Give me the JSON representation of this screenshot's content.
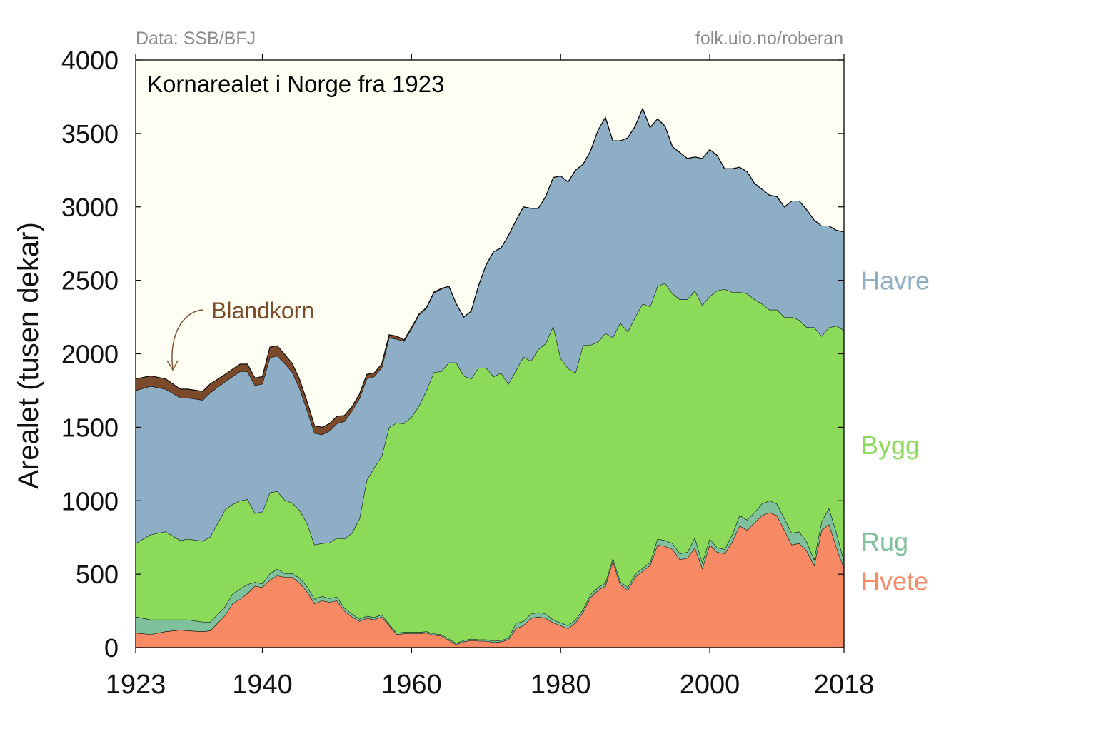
{
  "source_left": "Data: SSB/BFJ",
  "source_right": "folk.uio.no/roberan",
  "chart_data": {
    "type": "area",
    "stacked": true,
    "title": "Kornarealet i Norge fra 1923",
    "ylabel": "Arealet (tusen dekar)",
    "xlabel": "",
    "xlim": [
      1923,
      2018
    ],
    "ylim": [
      0,
      4000
    ],
    "xticks": [
      1923,
      1940,
      1960,
      1980,
      2000,
      2018
    ],
    "yticks": [
      0,
      500,
      1000,
      1500,
      2000,
      2500,
      3000,
      3500,
      4000
    ],
    "grid": false,
    "background": "#fffef3",
    "annotation": {
      "text": "Blandkorn",
      "target_x": 1928,
      "target_y": 1860,
      "color": "#7a4a2a"
    },
    "x": [
      1923,
      1925,
      1927,
      1929,
      1930,
      1932,
      1933,
      1935,
      1936,
      1937,
      1938,
      1939,
      1940,
      1941,
      1942,
      1943,
      1944,
      1945,
      1946,
      1947,
      1948,
      1949,
      1950,
      1951,
      1952,
      1953,
      1954,
      1955,
      1956,
      1957,
      1958,
      1959,
      1960,
      1961,
      1962,
      1963,
      1964,
      1965,
      1966,
      1967,
      1968,
      1969,
      1970,
      1971,
      1972,
      1973,
      1974,
      1975,
      1976,
      1977,
      1978,
      1979,
      1980,
      1981,
      1982,
      1983,
      1984,
      1985,
      1986,
      1987,
      1988,
      1989,
      1990,
      1991,
      1992,
      1993,
      1994,
      1995,
      1996,
      1997,
      1998,
      1999,
      2000,
      2001,
      2002,
      2003,
      2004,
      2005,
      2006,
      2007,
      2008,
      2009,
      2010,
      2011,
      2012,
      2013,
      2014,
      2015,
      2016,
      2017,
      2018
    ],
    "series": [
      {
        "name": "Hvete",
        "color": "#f78964",
        "values": [
          100,
          90,
          110,
          120,
          115,
          110,
          115,
          220,
          300,
          330,
          370,
          420,
          410,
          460,
          490,
          480,
          480,
          440,
          380,
          300,
          320,
          310,
          320,
          250,
          210,
          180,
          200,
          190,
          210,
          150,
          90,
          95,
          95,
          95,
          100,
          85,
          80,
          50,
          20,
          40,
          50,
          45,
          45,
          35,
          40,
          55,
          130,
          150,
          200,
          210,
          200,
          170,
          150,
          130,
          170,
          240,
          340,
          390,
          420,
          590,
          430,
          390,
          480,
          520,
          560,
          700,
          690,
          670,
          600,
          610,
          680,
          540,
          700,
          650,
          640,
          720,
          830,
          800,
          850,
          900,
          920,
          900,
          800,
          700,
          710,
          660,
          560,
          800,
          840,
          680,
          540
        ]
      },
      {
        "name": "Rug",
        "color": "#7fc19c",
        "values": [
          110,
          100,
          80,
          70,
          75,
          65,
          60,
          60,
          65,
          70,
          60,
          25,
          25,
          45,
          45,
          25,
          25,
          35,
          35,
          30,
          30,
          25,
          25,
          20,
          20,
          15,
          15,
          15,
          15,
          10,
          10,
          10,
          10,
          10,
          10,
          10,
          10,
          10,
          10,
          10,
          10,
          10,
          10,
          10,
          10,
          10,
          35,
          30,
          30,
          30,
          30,
          20,
          20,
          20,
          20,
          20,
          20,
          20,
          20,
          20,
          20,
          20,
          20,
          20,
          20,
          40,
          40,
          40,
          40,
          40,
          70,
          40,
          40,
          30,
          30,
          50,
          70,
          70,
          70,
          80,
          80,
          80,
          80,
          80,
          80,
          60,
          40,
          60,
          110,
          100,
          50
        ]
      },
      {
        "name": "Bygg",
        "color": "#8bda59",
        "values": [
          500,
          580,
          600,
          540,
          550,
          550,
          580,
          660,
          610,
          600,
          580,
          470,
          490,
          550,
          530,
          500,
          480,
          460,
          430,
          370,
          360,
          380,
          400,
          470,
          550,
          680,
          925,
          1020,
          1080,
          1340,
          1430,
          1420,
          1465,
          1540,
          1640,
          1780,
          1790,
          1880,
          1910,
          1800,
          1770,
          1850,
          1850,
          1800,
          1820,
          1730,
          1720,
          1800,
          1720,
          1790,
          1840,
          2000,
          1800,
          1750,
          1680,
          1800,
          1700,
          1670,
          1700,
          1500,
          1760,
          1740,
          1750,
          1800,
          1740,
          1720,
          1750,
          1700,
          1730,
          1720,
          1680,
          1750,
          1650,
          1750,
          1770,
          1650,
          1520,
          1540,
          1450,
          1360,
          1300,
          1320,
          1370,
          1470,
          1440,
          1460,
          1580,
          1260,
          1230,
          1410,
          1570
        ]
      },
      {
        "name": "Havre",
        "color": "#8daec4",
        "values": [
          1040,
          1010,
          970,
          970,
          960,
          960,
          980,
          870,
          870,
          880,
          870,
          870,
          870,
          920,
          920,
          930,
          890,
          830,
          770,
          760,
          740,
          760,
          780,
          800,
          830,
          820,
          690,
          620,
          600,
          610,
          570,
          560,
          600,
          620,
          560,
          540,
          560,
          520,
          400,
          400,
          460,
          560,
          700,
          850,
          850,
          1010,
          1020,
          1020,
          1040,
          960,
          1000,
          1010,
          1240,
          1270,
          1380,
          1230,
          1320,
          1440,
          1470,
          1340,
          1240,
          1320,
          1300,
          1330,
          1220,
          1140,
          1070,
          1000,
          1000,
          960,
          910,
          1000,
          1000,
          920,
          820,
          840,
          850,
          830,
          790,
          780,
          780,
          770,
          750,
          790,
          810,
          800,
          730,
          750,
          690,
          650,
          670
        ]
      },
      {
        "name": "Blandkorn",
        "color": "#7a4a2a",
        "values": [
          80,
          70,
          70,
          60,
          60,
          60,
          60,
          50,
          50,
          50,
          50,
          50,
          50,
          70,
          70,
          60,
          60,
          60,
          60,
          50,
          50,
          50,
          50,
          40,
          30,
          30,
          30,
          25,
          25,
          20,
          20,
          10,
          10,
          5,
          5,
          5,
          5,
          0,
          0,
          0,
          0,
          0,
          0,
          0,
          0,
          0,
          0,
          0,
          0,
          0,
          0,
          0,
          0,
          0,
          0,
          0,
          0,
          0,
          0,
          0,
          0,
          0,
          0,
          0,
          0,
          0,
          0,
          0,
          0,
          0,
          0,
          0,
          0,
          0,
          0,
          0,
          0,
          0,
          0,
          0,
          0,
          0,
          0,
          0,
          0,
          0,
          0,
          0,
          0,
          0,
          0
        ]
      }
    ]
  }
}
